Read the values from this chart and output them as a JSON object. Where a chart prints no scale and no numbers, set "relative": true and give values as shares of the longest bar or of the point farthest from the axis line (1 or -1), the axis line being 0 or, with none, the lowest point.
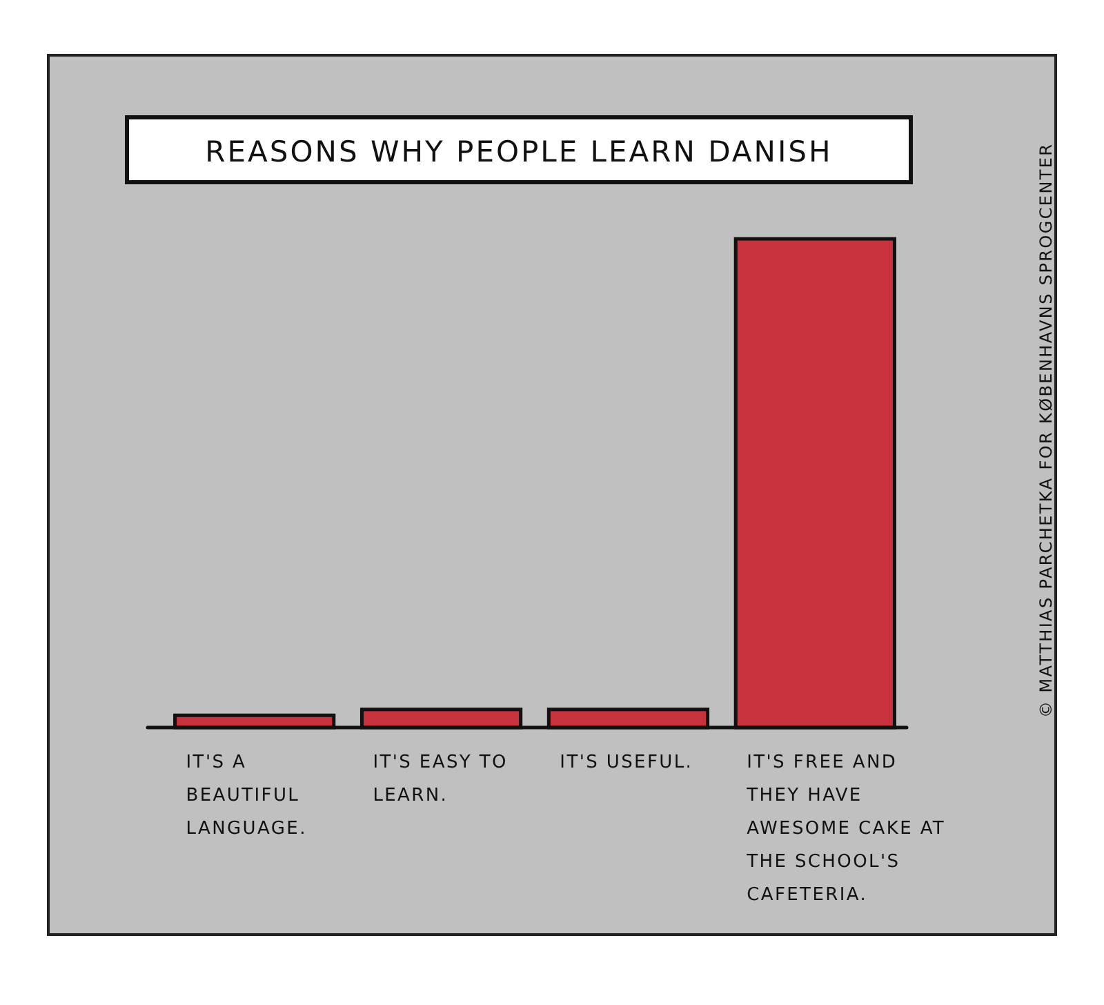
{
  "chart_data": {
    "type": "bar",
    "title": "REASONS WHY PEOPLE LEARN DANISH",
    "categories": [
      "IT'S A BEAUTIFUL LANGUAGE.",
      "IT'S EASY TO LEARN.",
      "IT'S USEFUL.",
      "IT'S FREE AND THEY HAVE AWESOME CAKE AT THE SCHOOL'S CAFETERIA."
    ],
    "values": [
      0.025,
      0.037,
      0.037,
      1
    ],
    "color": "#c8323c",
    "relative": true,
    "annotations": [
      "© MATTHIAS PARCHETKA FOR KØBENHAVNS SPROGCENTER"
    ]
  }
}
